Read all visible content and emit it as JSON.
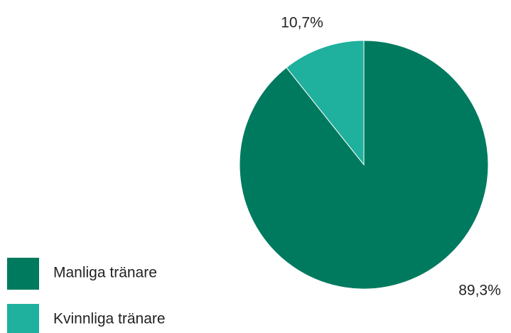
{
  "chart_data": {
    "type": "pie",
    "categories": [
      "Manliga tränare",
      "Kvinnliga tränare"
    ],
    "values": [
      89.3,
      10.7
    ],
    "value_labels": [
      "89,3%",
      "10,7%"
    ],
    "colors": [
      "#007a5e",
      "#1fb09e"
    ],
    "legend": "bottom-left"
  }
}
